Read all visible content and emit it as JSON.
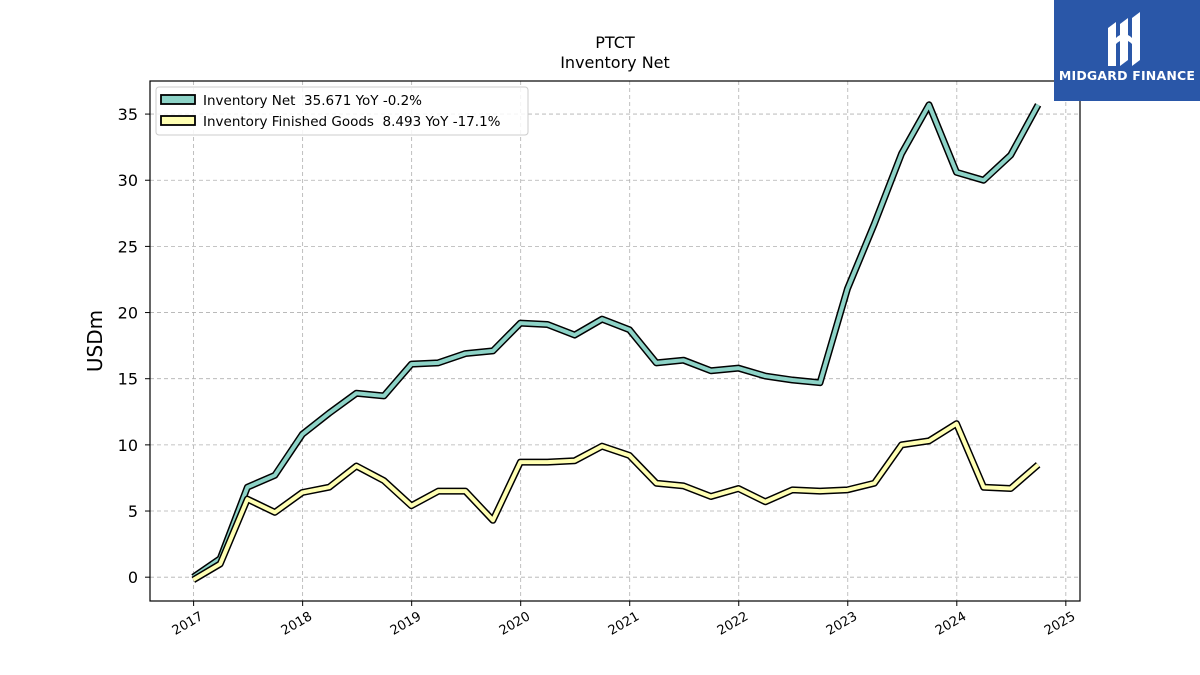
{
  "chart_data": {
    "type": "line",
    "title": "PTCT",
    "subtitle": "Inventory Net",
    "ylabel": "USDm",
    "xlabel": "",
    "ylim": [
      -1.8,
      37.5
    ],
    "xlim": [
      2016.6,
      2025.13
    ],
    "yticks": [
      0,
      5,
      10,
      15,
      20,
      25,
      30,
      35
    ],
    "xticks": [
      "2017",
      "2018",
      "2019",
      "2020",
      "2021",
      "2022",
      "2023",
      "2024",
      "2025"
    ],
    "grid": true,
    "legend_position": "top-left",
    "x": [
      "2016-12-31",
      "2017-03-31",
      "2017-06-30",
      "2017-09-30",
      "2017-12-31",
      "2018-03-31",
      "2018-06-30",
      "2018-09-30",
      "2018-12-31",
      "2019-03-31",
      "2019-06-30",
      "2019-09-30",
      "2019-12-31",
      "2020-03-31",
      "2020-06-30",
      "2020-09-30",
      "2020-12-31",
      "2021-03-31",
      "2021-06-30",
      "2021-09-30",
      "2021-12-31",
      "2022-03-31",
      "2022-06-30",
      "2022-09-30",
      "2022-12-31",
      "2023-03-31",
      "2023-06-30",
      "2023-09-30",
      "2023-12-31",
      "2024-03-31",
      "2024-06-30",
      "2024-09-30"
    ],
    "series": [
      {
        "name": "Inventory Net  35.671 YoY -0.2%",
        "color": "#8dd3c7",
        "values": [
          0.0,
          1.4,
          6.8,
          7.7,
          10.8,
          12.4,
          13.9,
          13.7,
          16.1,
          16.2,
          16.9,
          17.1,
          19.2,
          19.1,
          18.3,
          19.5,
          18.7,
          16.2,
          16.4,
          15.6,
          15.8,
          15.2,
          14.9,
          14.7,
          21.8,
          26.7,
          32.0,
          35.7,
          30.6,
          30.0,
          31.9,
          35.7
        ]
      },
      {
        "name": "Inventory Finished Goods  8.493 YoY -17.1%",
        "color": "#ffffb3",
        "values": [
          -0.2,
          1.0,
          5.9,
          4.9,
          6.4,
          6.8,
          8.4,
          7.3,
          5.4,
          6.5,
          6.5,
          4.3,
          8.7,
          8.7,
          8.8,
          9.9,
          9.2,
          7.1,
          6.9,
          6.1,
          6.7,
          5.7,
          6.6,
          6.5,
          6.6,
          7.1,
          10.0,
          10.3,
          11.6,
          6.8,
          6.7,
          8.5
        ]
      }
    ]
  },
  "logo": {
    "text": "MIDGARD FINANCE",
    "background": "#2a57a8"
  }
}
